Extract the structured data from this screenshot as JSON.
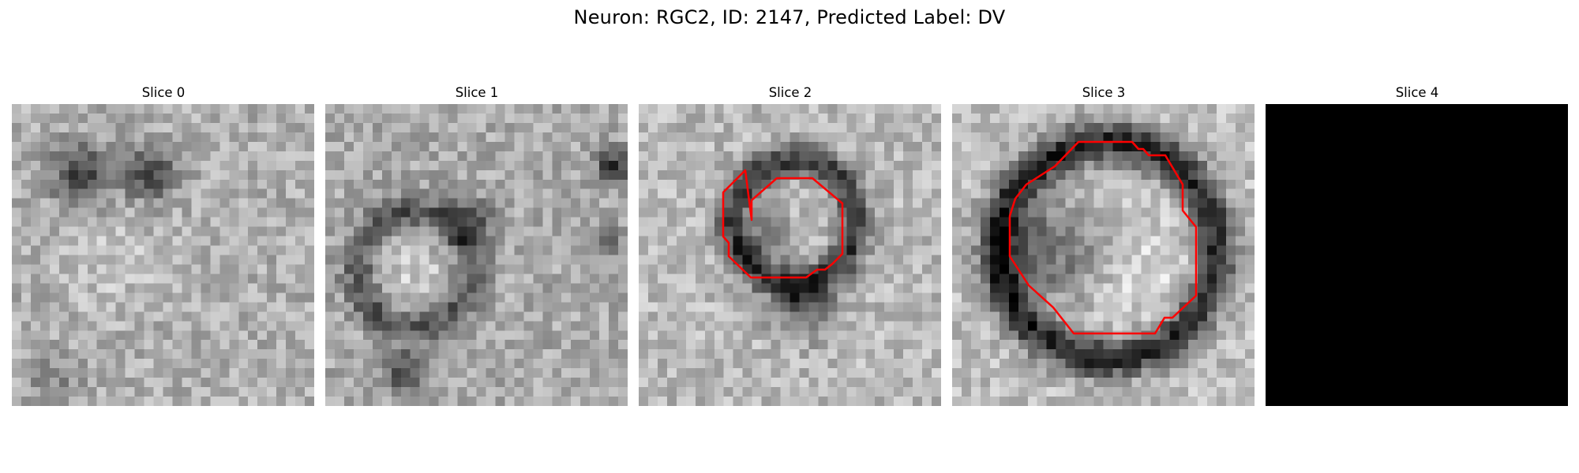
{
  "figure": {
    "title": "Neuron: RGC2, ID: 2147, Predicted Label: DV"
  },
  "panels": [
    {
      "title": "Slice 0",
      "content": "noise",
      "outline": false
    },
    {
      "title": "Slice 1",
      "content": "noise",
      "outline": false
    },
    {
      "title": "Slice 2",
      "content": "ring-small",
      "outline": true
    },
    {
      "title": "Slice 3",
      "content": "ring-large",
      "outline": true
    },
    {
      "title": "Slice 4",
      "content": "black",
      "outline": false
    }
  ],
  "colors": {
    "outline": "#ff0000",
    "background": "#ffffff",
    "empty_slice": "#000000"
  }
}
